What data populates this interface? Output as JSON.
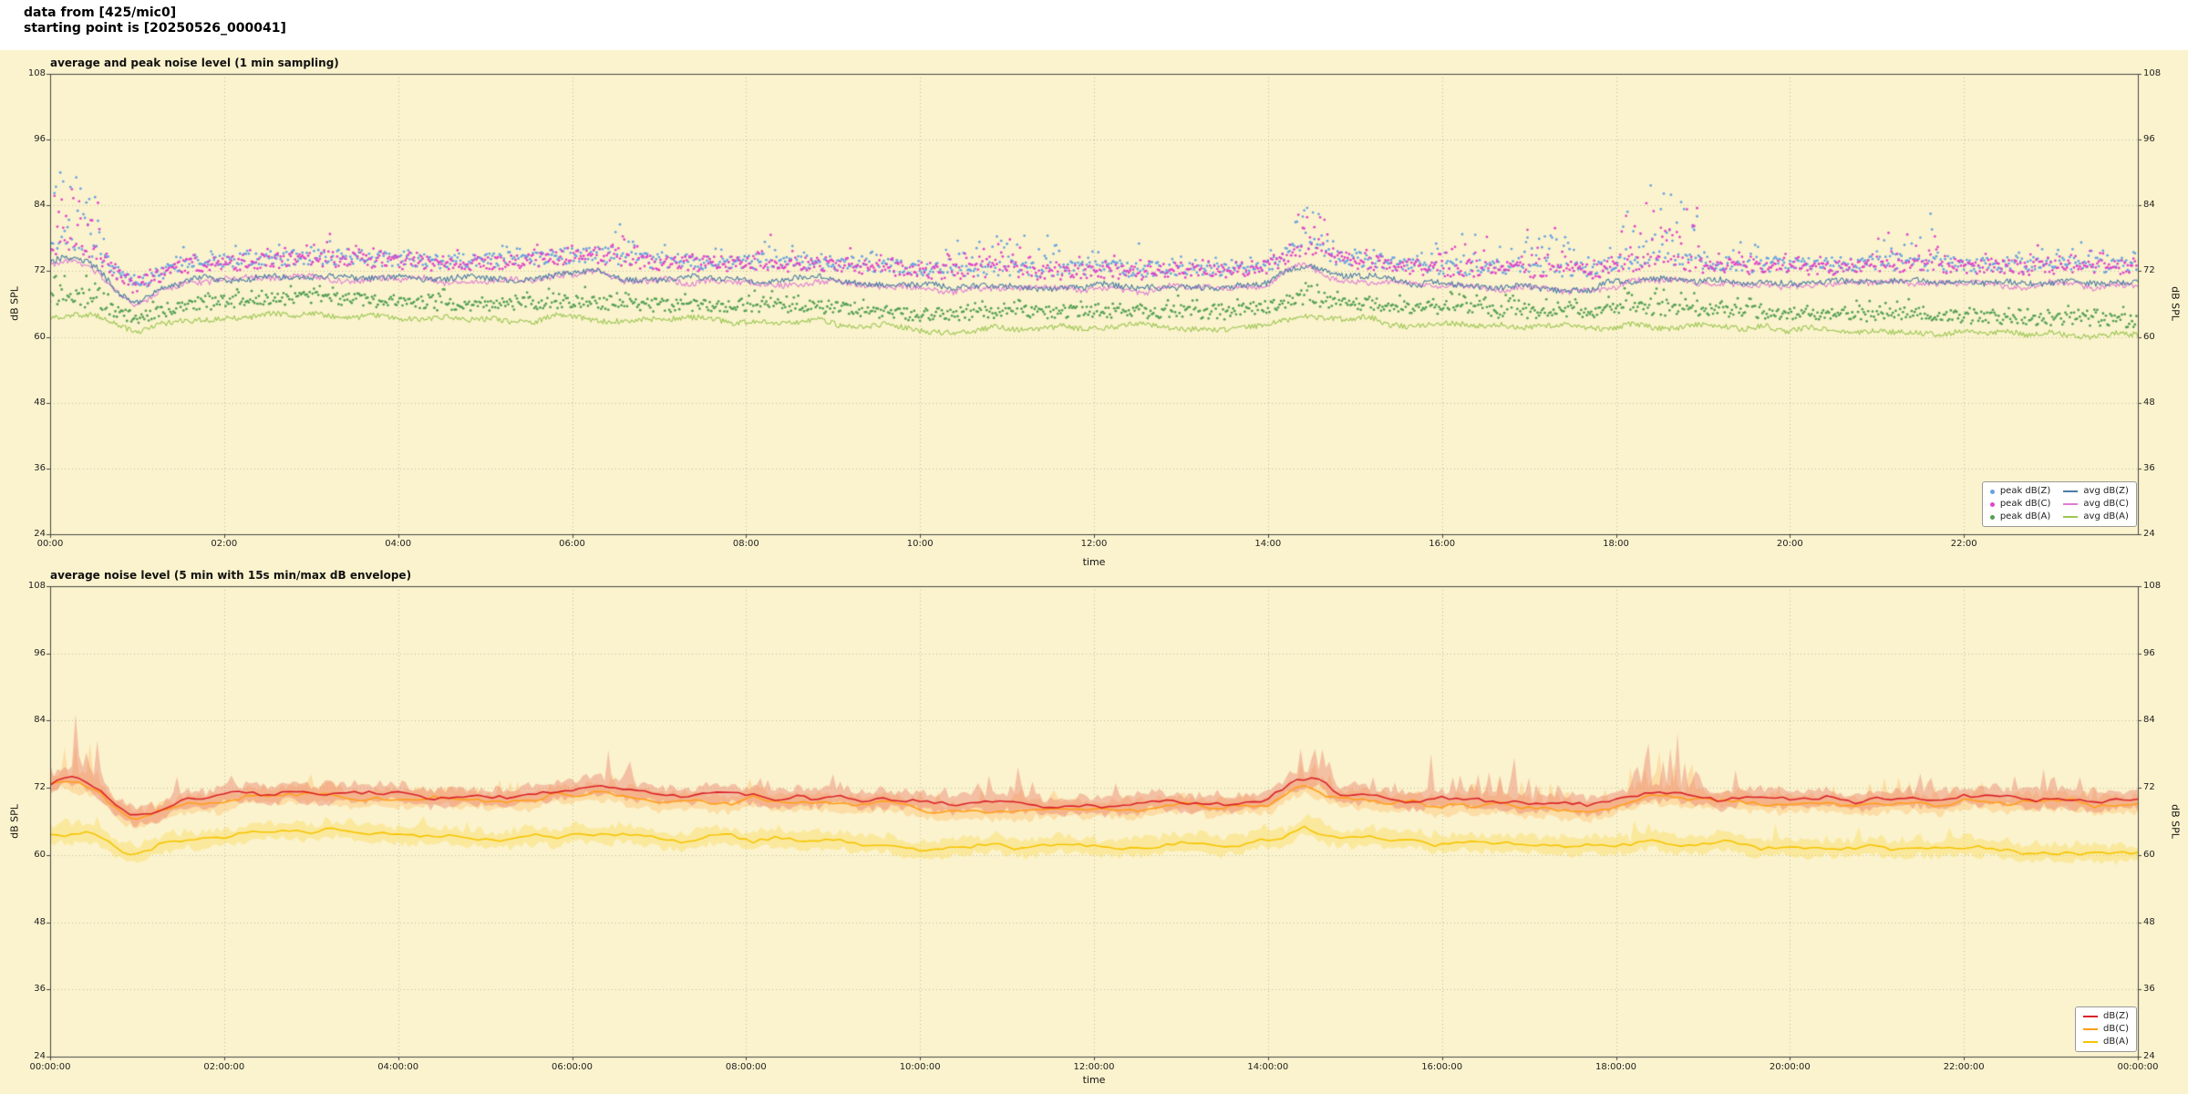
{
  "header": {
    "line1": "data from [425/mic0]",
    "line2": "starting point is [20250526_000041]"
  },
  "figure": {
    "background": "#fbf3cd",
    "grid_color": "#8f8f80",
    "spine_color": "#444444",
    "tick_text_color": "#222222"
  },
  "chart_model": {
    "anchors": {
      "z": {
        "x": [
          0,
          0.15,
          0.35,
          0.55,
          0.75,
          0.95,
          1.1,
          1.3,
          1.6,
          2,
          2.5,
          3,
          3.5,
          4,
          4.5,
          5,
          5.5,
          6,
          6.3,
          6.6,
          7,
          7.5,
          8,
          8.5,
          9,
          9.5,
          10,
          10.5,
          11,
          11.5,
          12,
          12.5,
          13,
          13.5,
          14,
          14.3,
          14.5,
          14.8,
          15.2,
          15.7,
          16.2,
          16.7,
          17.2,
          17.7,
          18.1,
          18.4,
          18.8,
          19.3,
          19.8,
          20.3,
          20.8,
          21.3,
          21.8,
          22.3,
          22.8,
          23.3,
          23.7,
          24
        ],
        "y": [
          73.2,
          74,
          73.5,
          72,
          68.5,
          66.6,
          67.2,
          68.5,
          70.3,
          70.6,
          71,
          71.4,
          71.3,
          70.9,
          70.6,
          70.7,
          71,
          71.6,
          72,
          71,
          70.6,
          70.5,
          70.6,
          70.5,
          70.4,
          70,
          69.3,
          69,
          69.4,
          68.9,
          69.4,
          69,
          69.4,
          69.1,
          69.9,
          72.8,
          73.2,
          71.2,
          70.7,
          70,
          69.4,
          69.6,
          69.2,
          69,
          70.3,
          71,
          70.4,
          70,
          70,
          69.9,
          70,
          70.4,
          70.1,
          70,
          69.9,
          70,
          69.7,
          69.8
        ]
      },
      "a": {
        "x": [
          0,
          0.3,
          0.6,
          0.8,
          1,
          1.2,
          1.5,
          2,
          2.5,
          3,
          3.5,
          4,
          4.5,
          5,
          5.5,
          6,
          6.5,
          7,
          7.5,
          8,
          8.5,
          9,
          9.5,
          10,
          10.5,
          11,
          11.5,
          12,
          12.5,
          13,
          13.5,
          14,
          14.4,
          14.8,
          15.3,
          15.8,
          16.3,
          16.8,
          17.3,
          17.8,
          18.3,
          18.8,
          19.3,
          19.8,
          20.3,
          20.8,
          21.3,
          21.8,
          22.3,
          22.8,
          23.3,
          23.7,
          24
        ],
        "y": [
          64,
          64.2,
          63,
          61.4,
          60.6,
          61.4,
          62.8,
          63.6,
          64,
          64.3,
          64,
          63.6,
          63.2,
          63,
          63.3,
          63.6,
          63.2,
          63,
          62.9,
          63,
          62.8,
          62.6,
          61.9,
          61.2,
          61.4,
          61.8,
          61.5,
          62,
          61.7,
          61.9,
          61.6,
          62.8,
          64.3,
          63.3,
          62.9,
          62.4,
          62.2,
          61.6,
          62,
          61.9,
          62.4,
          62.1,
          61.9,
          61.6,
          61.4,
          61.2,
          61.3,
          61,
          60.7,
          60.5,
          60.6,
          60.2,
          60.1
        ]
      }
    },
    "bursts": [
      {
        "s": 0.05,
        "e": 0.62,
        "amp": 12,
        "p": 0.6
      },
      {
        "s": 1.35,
        "e": 1.55,
        "amp": 3.5,
        "p": 0.3
      },
      {
        "s": 2.95,
        "e": 3.25,
        "amp": 3.5,
        "p": 0.3
      },
      {
        "s": 6.38,
        "e": 6.72,
        "amp": 5,
        "p": 0.4
      },
      {
        "s": 8,
        "e": 8.3,
        "amp": 3.5,
        "p": 0.25
      },
      {
        "s": 10.3,
        "e": 11.6,
        "amp": 5.5,
        "p": 0.3
      },
      {
        "s": 12.2,
        "e": 12.55,
        "amp": 4,
        "p": 0.3
      },
      {
        "s": 14.3,
        "e": 14.72,
        "amp": 8,
        "p": 0.5
      },
      {
        "s": 15.85,
        "e": 17.55,
        "amp": 6.5,
        "p": 0.3
      },
      {
        "s": 18.05,
        "e": 18.95,
        "amp": 12,
        "p": 0.5
      },
      {
        "s": 19.35,
        "e": 19.6,
        "amp": 3.5,
        "p": 0.3
      },
      {
        "s": 21,
        "e": 21.7,
        "amp": 7,
        "p": 0.35
      },
      {
        "s": 22.8,
        "e": 23.1,
        "amp": 5,
        "p": 0.3
      },
      {
        "s": 23.35,
        "e": 23.6,
        "amp": 3.5,
        "p": 0.3
      }
    ]
  },
  "chart_data": [
    {
      "id": "top",
      "type": "line+scatter",
      "title": "average and peak noise level (1 min sampling)",
      "xlabel": "time",
      "ylabel": "dB SPL",
      "ylabel_right": "dB SPL",
      "x_unit": "hours",
      "xlim": [
        0,
        24
      ],
      "ylim": [
        24,
        108
      ],
      "grid": true,
      "legend_position": "lower right",
      "yticks": {
        "values": [
          24,
          36,
          48,
          60,
          72,
          84,
          96,
          108
        ],
        "labels": [
          "24",
          "36",
          "48",
          "60",
          "72",
          "84",
          "96",
          "108"
        ]
      },
      "xticks": {
        "hours": [
          0,
          2,
          4,
          6,
          8,
          10,
          12,
          14,
          16,
          18,
          20,
          22
        ],
        "labels": [
          "00:00",
          "02:00",
          "04:00",
          "06:00",
          "08:00",
          "10:00",
          "12:00",
          "14:00",
          "16:00",
          "18:00",
          "20:00",
          "22:00"
        ]
      },
      "series": [
        {
          "name": "peak dB(Z)",
          "kind": "scatter",
          "color": "#69a3e0",
          "base": "z",
          "offset": 1.8,
          "spread": 2.8,
          "burst_scale": 1
        },
        {
          "name": "peak dB(C)",
          "kind": "scatter",
          "color": "#e046c8",
          "base": "z",
          "offset": 1.4,
          "spread": 2.8,
          "burst_scale": 0.9
        },
        {
          "name": "peak dB(A)",
          "kind": "scatter",
          "color": "#55a055",
          "base": "a",
          "offset": 1.6,
          "spread": 2.4,
          "burst_scale": 0.3
        },
        {
          "name": "avg dB(C)",
          "kind": "line",
          "color": "#e07bd4",
          "base": "z",
          "offset": -0.5,
          "slow": 0.7,
          "fast": 0.55
        },
        {
          "name": "avg dB(Z)",
          "kind": "line",
          "color": "#4a7ca6",
          "base": "z",
          "offset": 0,
          "slow": 0.7,
          "fast": 0.55
        },
        {
          "name": "avg dB(A)",
          "kind": "line",
          "color": "#9cc653",
          "base": "a",
          "offset": 0,
          "slow": 0.7,
          "fast": 0.5
        }
      ],
      "legend": {
        "columns": [
          [
            {
              "label": "peak dB(Z)",
              "marker": "dot",
              "color": "#69a3e0"
            },
            {
              "label": "peak dB(C)",
              "marker": "dot",
              "color": "#e046c8"
            },
            {
              "label": "peak dB(A)",
              "marker": "dot",
              "color": "#55a055"
            }
          ],
          [
            {
              "label": "avg dB(Z)",
              "marker": "line",
              "color": "#4a7ca6"
            },
            {
              "label": "avg dB(C)",
              "marker": "line",
              "color": "#e07bd4"
            },
            {
              "label": "avg dB(A)",
              "marker": "line",
              "color": "#9cc653"
            }
          ]
        ]
      }
    },
    {
      "id": "bottom",
      "type": "line+band",
      "title": "average noise level (5 min with 15s min/max dB envelope)",
      "xlabel": "time",
      "ylabel": "dB SPL",
      "ylabel_right": "dB SPL",
      "x_unit": "hours",
      "xlim": [
        0,
        24
      ],
      "ylim": [
        24,
        108
      ],
      "grid": true,
      "legend_position": "lower right",
      "yticks": {
        "values": [
          24,
          36,
          48,
          60,
          72,
          84,
          96,
          108
        ],
        "labels": [
          "24",
          "36",
          "48",
          "60",
          "72",
          "84",
          "96",
          "108"
        ]
      },
      "xticks": {
        "hours": [
          0,
          2,
          4,
          6,
          8,
          10,
          12,
          14,
          16,
          18,
          20,
          22,
          24
        ],
        "labels": [
          "00:00:00",
          "02:00:00",
          "04:00:00",
          "06:00:00",
          "08:00:00",
          "10:00:00",
          "12:00:00",
          "14:00:00",
          "16:00:00",
          "18:00:00",
          "20:00:00",
          "22:00:00",
          "00:00:00"
        ]
      },
      "series": [
        {
          "name": "dB(A)",
          "kind": "band+line",
          "color": "#f5c400",
          "band_color": "rgba(250,215,80,0.38)",
          "base": "a",
          "offset": 0,
          "slow": 0.7,
          "fast": 0.3,
          "burst_scale": 0.12
        },
        {
          "name": "dB(C)",
          "kind": "band+line",
          "color": "#ff9e1b",
          "band_color": "rgba(255,175,80,0.32)",
          "base": "z",
          "offset": -0.8,
          "slow": 0.7,
          "fast": 0.3,
          "burst_scale": 0.5
        },
        {
          "name": "dB(Z)",
          "kind": "band+line",
          "color": "#da2128",
          "band_color": "rgba(232,110,95,0.38)",
          "base": "z",
          "offset": 0,
          "slow": 0.7,
          "fast": 0.3,
          "burst_scale": 1
        }
      ],
      "legend": {
        "columns": [
          [
            {
              "label": "dB(Z)",
              "marker": "line",
              "color": "#da2128"
            },
            {
              "label": "dB(C)",
              "marker": "line",
              "color": "#ff9e1b"
            },
            {
              "label": "dB(A)",
              "marker": "line",
              "color": "#f5c400"
            }
          ]
        ]
      }
    }
  ]
}
